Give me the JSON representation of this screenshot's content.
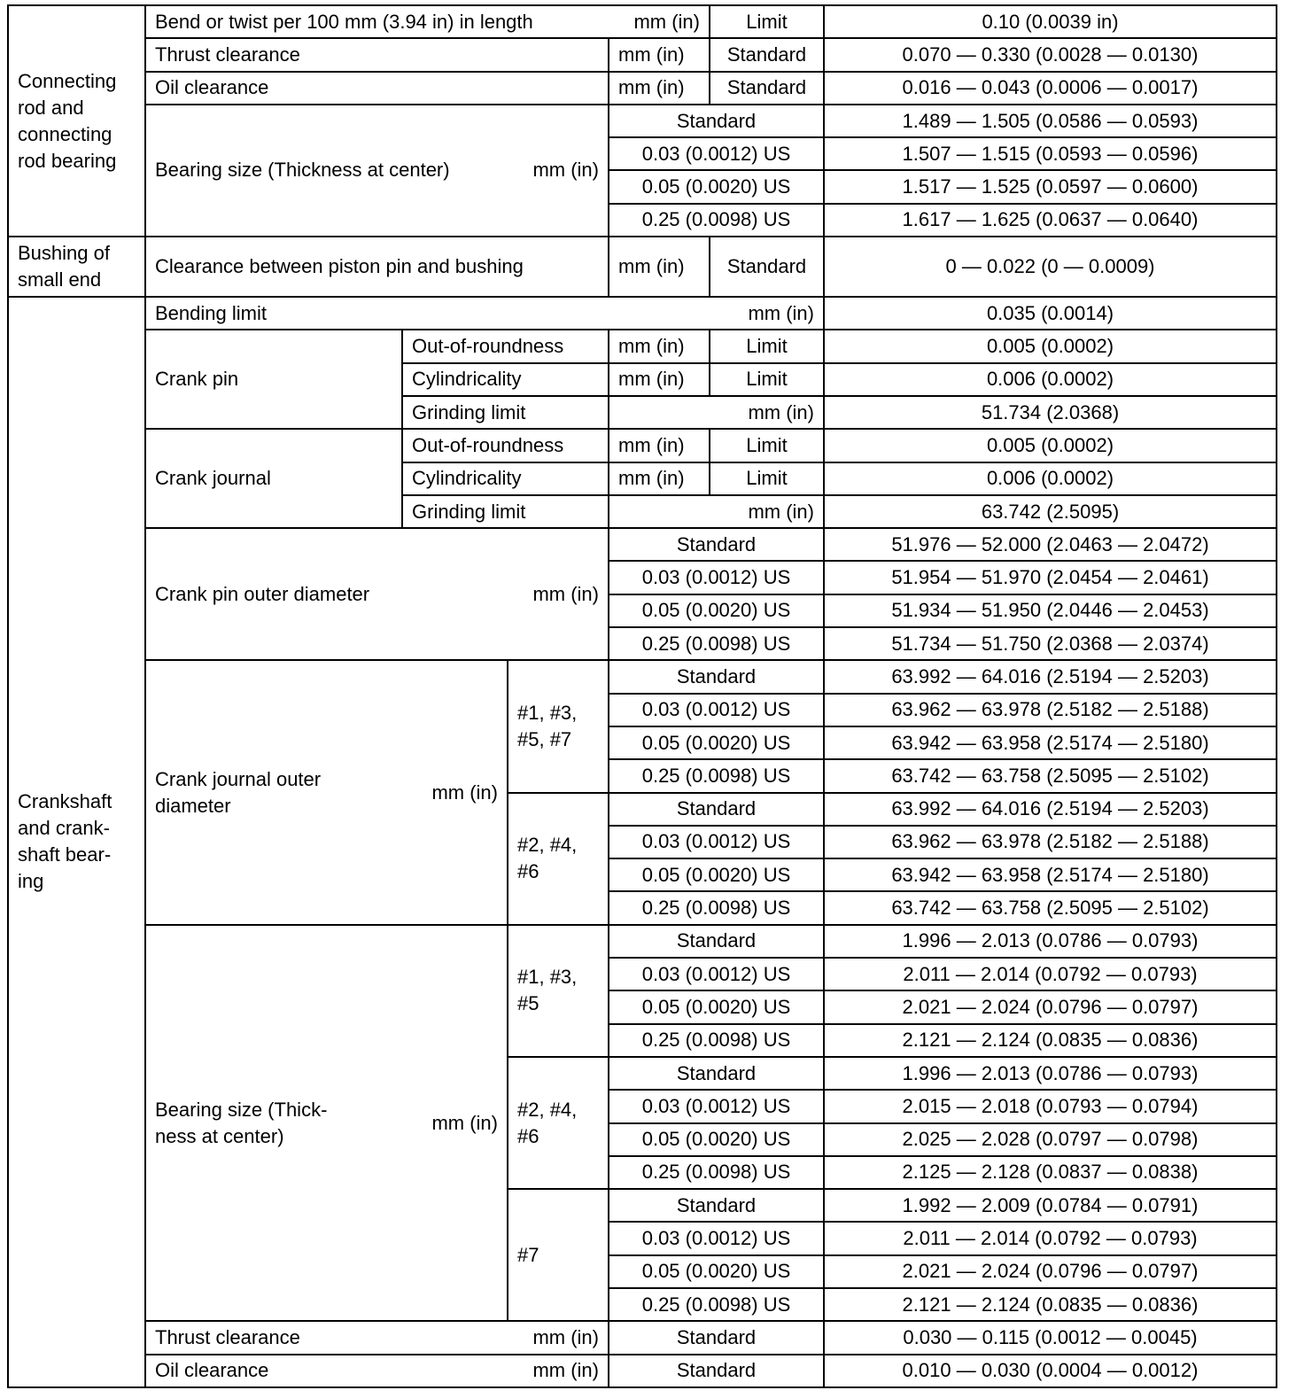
{
  "conrod": {
    "label": "Connecting rod and connecting rod bearing",
    "bend": {
      "label": "Bend or twist per 100 mm (3.94 in) in length",
      "unit": "mm (in)",
      "kind": "Limit",
      "value": "0.10 (0.0039 in)"
    },
    "thrust": {
      "label": "Thrust clearance",
      "unit": "mm (in)",
      "kind": "Standard",
      "value": "0.070 — 0.330 (0.0028 — 0.0130)"
    },
    "oil": {
      "label": "Oil clearance",
      "unit": "mm (in)",
      "kind": "Standard",
      "value": "0.016 — 0.043 (0.0006 — 0.0017)"
    },
    "bearing": {
      "label": "Bearing size (Thickness at center)",
      "unit": "mm (in)",
      "rows": [
        {
          "size": "Standard",
          "value": "1.489 — 1.505 (0.0586 — 0.0593)"
        },
        {
          "size": "0.03 (0.0012) US",
          "value": "1.507 — 1.515 (0.0593 — 0.0596)"
        },
        {
          "size": "0.05 (0.0020) US",
          "value": "1.517 — 1.525 (0.0597 — 0.0600)"
        },
        {
          "size": "0.25 (0.0098) US",
          "value": "1.617 — 1.625 (0.0637 — 0.0640)"
        }
      ]
    }
  },
  "bushing": {
    "label": "Bushing of\nsmall end",
    "clearance": {
      "label": "Clearance between piston pin and bushing",
      "unit": "mm (in)",
      "kind": "Standard",
      "value": "0 — 0.022 (0 — 0.0009)"
    }
  },
  "crankshaft": {
    "label": "Crankshaft\nand crank-\nshaft bear-\ning",
    "bending": {
      "label": "Bending limit",
      "unit": "mm (in)",
      "value": "0.035 (0.0014)"
    },
    "crank_pin": {
      "label": "Crank pin",
      "items": [
        {
          "label": "Out-of-roundness",
          "unit": "mm (in)",
          "kind": "Limit",
          "value": "0.005 (0.0002)"
        },
        {
          "label": "Cylindricality",
          "unit": "mm (in)",
          "kind": "Limit",
          "value": "0.006 (0.0002)"
        },
        {
          "label": "Grinding limit",
          "unit": "mm (in)",
          "value": "51.734 (2.0368)"
        }
      ]
    },
    "crank_journal": {
      "label": "Crank journal",
      "items": [
        {
          "label": "Out-of-roundness",
          "unit": "mm (in)",
          "kind": "Limit",
          "value": "0.005 (0.0002)"
        },
        {
          "label": "Cylindricality",
          "unit": "mm (in)",
          "kind": "Limit",
          "value": "0.006 (0.0002)"
        },
        {
          "label": "Grinding limit",
          "unit": "mm (in)",
          "value": "63.742 (2.5095)"
        }
      ]
    },
    "pin_od": {
      "label": "Crank pin outer diameter",
      "unit": "mm (in)",
      "rows": [
        {
          "size": "Standard",
          "value": "51.976 — 52.000 (2.0463 — 2.0472)"
        },
        {
          "size": "0.03 (0.0012) US",
          "value": "51.954 — 51.970 (2.0454 — 2.0461)"
        },
        {
          "size": "0.05 (0.0020) US",
          "value": "51.934 — 51.950 (2.0446 — 2.0453)"
        },
        {
          "size": "0.25 (0.0098) US",
          "value": "51.734 — 51.750 (2.0368 — 2.0374)"
        }
      ]
    },
    "journal_od": {
      "label": "Crank journal outer\ndiameter",
      "unit": "mm (in)",
      "groups": [
        {
          "journals": "#1, #3,\n#5, #7",
          "rows": [
            {
              "size": "Standard",
              "value": "63.992 — 64.016 (2.5194 — 2.5203)"
            },
            {
              "size": "0.03 (0.0012) US",
              "value": "63.962 — 63.978 (2.5182 — 2.5188)"
            },
            {
              "size": "0.05 (0.0020) US",
              "value": "63.942 — 63.958 (2.5174 — 2.5180)"
            },
            {
              "size": "0.25 (0.0098) US",
              "value": "63.742 — 63.758 (2.5095 — 2.5102)"
            }
          ]
        },
        {
          "journals": "#2, #4,\n#6",
          "rows": [
            {
              "size": "Standard",
              "value": "63.992 — 64.016 (2.5194 — 2.5203)"
            },
            {
              "size": "0.03 (0.0012) US",
              "value": "63.962 — 63.978 (2.5182 — 2.5188)"
            },
            {
              "size": "0.05 (0.0020) US",
              "value": "63.942 — 63.958 (2.5174 — 2.5180)"
            },
            {
              "size": "0.25 (0.0098) US",
              "value": "63.742 — 63.758 (2.5095 — 2.5102)"
            }
          ]
        }
      ]
    },
    "bearing": {
      "label": "Bearing size (Thick-\nness at center)",
      "unit": "mm (in)",
      "groups": [
        {
          "journals": "#1, #3,\n#5",
          "rows": [
            {
              "size": "Standard",
              "value": "1.996 — 2.013 (0.0786 — 0.0793)"
            },
            {
              "size": "0.03 (0.0012) US",
              "value": "2.011 — 2.014 (0.0792 — 0.0793)"
            },
            {
              "size": "0.05 (0.0020) US",
              "value": "2.021 — 2.024 (0.0796 — 0.0797)"
            },
            {
              "size": "0.25 (0.0098) US",
              "value": "2.121 — 2.124 (0.0835 — 0.0836)"
            }
          ]
        },
        {
          "journals": "#2, #4,\n#6",
          "rows": [
            {
              "size": "Standard",
              "value": "1.996 — 2.013 (0.0786 — 0.0793)"
            },
            {
              "size": "0.03 (0.0012) US",
              "value": "2.015 — 2.018 (0.0793 — 0.0794)"
            },
            {
              "size": "0.05 (0.0020) US",
              "value": "2.025 — 2.028 (0.0797 — 0.0798)"
            },
            {
              "size": "0.25 (0.0098) US",
              "value": "2.125 — 2.128 (0.0837 — 0.0838)"
            }
          ]
        },
        {
          "journals": "#7",
          "rows": [
            {
              "size": "Standard",
              "value": "1.992 — 2.009 (0.0784 — 0.0791)"
            },
            {
              "size": "0.03 (0.0012) US",
              "value": "2.011 — 2.014 (0.0792 — 0.0793)"
            },
            {
              "size": "0.05 (0.0020) US",
              "value": "2.021 — 2.024 (0.0796 — 0.0797)"
            },
            {
              "size": "0.25 (0.0098) US",
              "value": "2.121 — 2.124 (0.0835 — 0.0836)"
            }
          ]
        }
      ]
    },
    "thrust": {
      "label": "Thrust clearance",
      "unit": "mm (in)",
      "kind": "Standard",
      "value": "0.030 — 0.115 (0.0012 — 0.0045)"
    },
    "oil": {
      "label": "Oil clearance",
      "unit": "mm (in)",
      "kind": "Standard",
      "value": "0.010 — 0.030 (0.0004 — 0.0012)"
    }
  }
}
